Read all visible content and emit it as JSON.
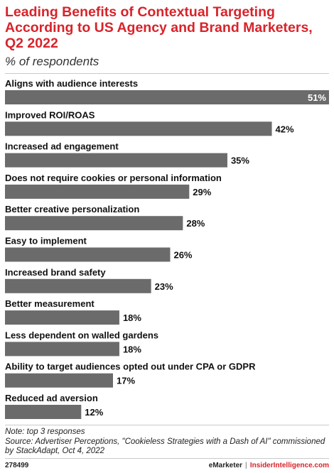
{
  "header": {
    "title": "Leading Benefits of Contextual Targeting According to US Agency and Brand Marketers, Q2 2022",
    "subtitle": "% of respondents"
  },
  "chart_data": {
    "type": "bar",
    "orientation": "horizontal",
    "categories": [
      "Aligns with audience interests",
      "Improved ROI/ROAS",
      "Increased ad engagement",
      "Does not require cookies or personal information",
      "Better creative personalization",
      "Easy to implement",
      "Increased brand safety",
      "Better measurement",
      "Less dependent on walled gardens",
      "Ability to target audiences opted out under CPA or GDPR",
      "Reduced ad aversion"
    ],
    "values": [
      51,
      42,
      35,
      29,
      28,
      26,
      23,
      18,
      18,
      17,
      12
    ],
    "value_labels": [
      "51%",
      "42%",
      "35%",
      "29%",
      "28%",
      "26%",
      "23%",
      "18%",
      "18%",
      "17%",
      "12%"
    ],
    "unit": "%",
    "xlim": [
      0,
      51
    ],
    "grid": false,
    "legend": "none",
    "bar_color": "#6b6b6b"
  },
  "footer": {
    "note": "Note: top 3 responses",
    "source": "Source: Advertiser Perceptions, \"Cookieless Strategies with a Dash of AI\" commissioned by StackAdapt, Oct 4, 2022",
    "chart_id": "278499",
    "brand_left": "eMarketer",
    "separator": "|",
    "brand_right": "InsiderIntelligence.com"
  },
  "colors": {
    "title": "#d8232a",
    "bar": "#6b6b6b"
  }
}
